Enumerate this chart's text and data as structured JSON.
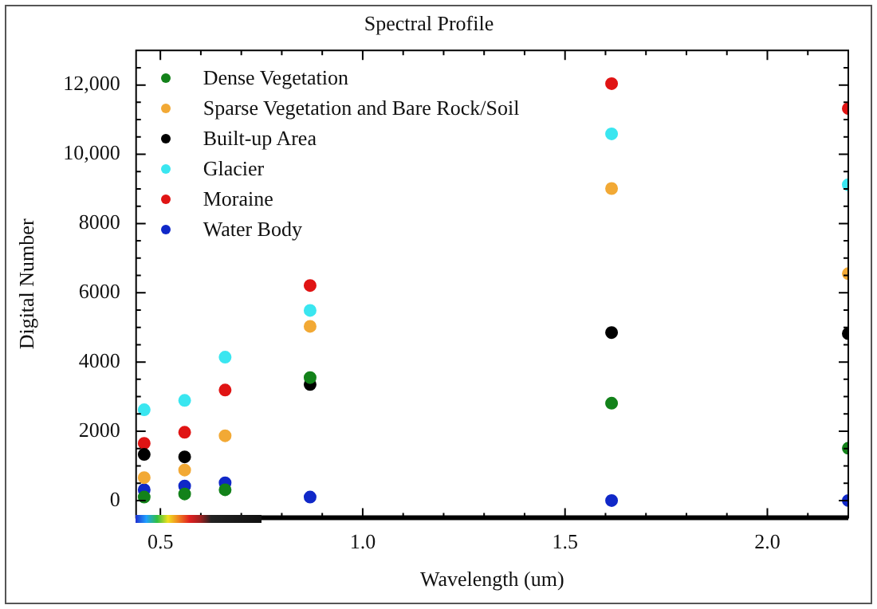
{
  "chart_data": {
    "type": "scatter",
    "title": "Spectral Profile",
    "xlabel": "Wavelength (um)",
    "ylabel": "Digital Number",
    "x": [
      0.46,
      0.56,
      0.66,
      0.87,
      1.615,
      2.2
    ],
    "series": [
      {
        "name": "Dense Vegetation",
        "color": "#13821a",
        "values": [
          100,
          190,
          310,
          3550,
          2810,
          1510
        ]
      },
      {
        "name": "Sparse Vegetation and Bare Rock/Soil",
        "color": "#f2a935",
        "values": [
          660,
          880,
          1870,
          5030,
          9010,
          6550
        ]
      },
      {
        "name": "Built-up Area",
        "color": "#000000",
        "values": [
          1330,
          1260,
          null,
          3350,
          4850,
          4820
        ]
      },
      {
        "name": "Glacier",
        "color": "#3ae6f0",
        "values": [
          2620,
          2890,
          4140,
          5490,
          10590,
          9120
        ]
      },
      {
        "name": "Moraine",
        "color": "#e01414",
        "values": [
          1650,
          1970,
          3190,
          6210,
          12040,
          11320
        ]
      },
      {
        "name": "Water Body",
        "color": "#1028c8",
        "values": [
          310,
          420,
          510,
          100,
          0,
          0
        ]
      }
    ],
    "xlim": [
      0.44,
      2.2
    ],
    "xticks": [
      {
        "value": 0.5,
        "label": "0.5"
      },
      {
        "value": 0.6,
        "label": null
      },
      {
        "value": 0.7,
        "label": null
      },
      {
        "value": 0.8,
        "label": null
      },
      {
        "value": 0.9,
        "label": null
      },
      {
        "value": 1,
        "label": "1.0"
      },
      {
        "value": 1.1,
        "label": null
      },
      {
        "value": 1.2,
        "label": null
      },
      {
        "value": 1.3,
        "label": null
      },
      {
        "value": 1.4,
        "label": null
      },
      {
        "value": 1.5,
        "label": "1.5"
      },
      {
        "value": 1.6,
        "label": null
      },
      {
        "value": 1.7,
        "label": null
      },
      {
        "value": 1.8,
        "label": null
      },
      {
        "value": 1.9,
        "label": null
      },
      {
        "value": 2,
        "label": "2.0"
      },
      {
        "value": 2.1,
        "label": null
      }
    ],
    "ylim": [
      -500,
      13000
    ],
    "yticks": [
      0,
      {
        "value": 500,
        "label": null
      },
      {
        "value": 1000,
        "label": null
      },
      {
        "value": 1500,
        "label": null
      },
      2000,
      {
        "value": 2500,
        "label": null
      },
      {
        "value": 3000,
        "label": null
      },
      {
        "value": 3500,
        "label": null
      },
      4000,
      {
        "value": 4500,
        "label": null
      },
      {
        "value": 5000,
        "label": null
      },
      {
        "value": 5500,
        "label": null
      },
      6000,
      {
        "value": 6500,
        "label": null
      },
      {
        "value": 7000,
        "label": null
      },
      {
        "value": 7500,
        "label": null
      },
      8000,
      {
        "value": 8500,
        "label": null
      },
      {
        "value": 9000,
        "label": null
      },
      {
        "value": 9500,
        "label": null
      },
      {
        "value": 10000,
        "label": "10,000"
      },
      {
        "value": 10500,
        "label": null
      },
      {
        "value": 11000,
        "label": null
      },
      {
        "value": 11500,
        "label": null
      },
      {
        "value": 12000,
        "label": "12,000"
      },
      {
        "value": 12500,
        "label": null
      }
    ],
    "grid": false,
    "legend": "top left",
    "marker": "circle"
  }
}
